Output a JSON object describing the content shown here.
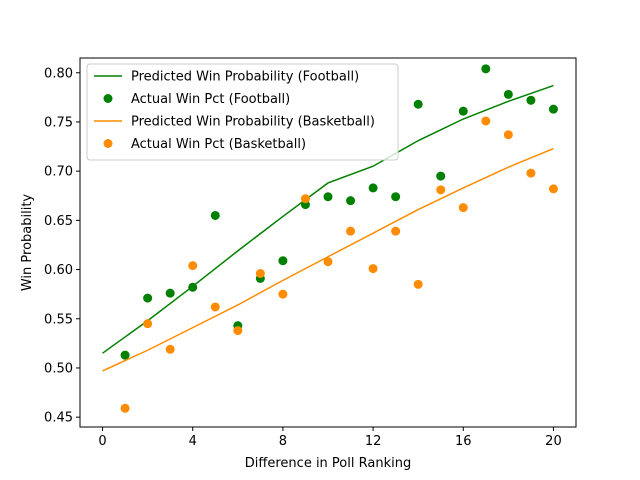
{
  "chart_data": {
    "type": "scatter",
    "title": "",
    "xlabel": "Difference in Poll Ranking",
    "ylabel": "Win Probability",
    "xlim": [
      -1,
      21
    ],
    "ylim": [
      0.44,
      0.815
    ],
    "xticks": [
      0,
      4,
      8,
      12,
      16,
      20
    ],
    "yticks": [
      0.45,
      0.5,
      0.55,
      0.6,
      0.65,
      0.7,
      0.75,
      0.8
    ],
    "ytick_labels": [
      "0.45",
      "0.50",
      "0.55",
      "0.60",
      "0.65",
      "0.70",
      "0.75",
      "0.80"
    ],
    "grid": false,
    "legend_position": "top-left",
    "colors": {
      "football": "#008000",
      "basketball": "#ff8c00"
    },
    "series": [
      {
        "name": "Predicted Win Probability (Football)",
        "kind": "line",
        "color": "#008000",
        "x": [
          0,
          2,
          4,
          6,
          8,
          10,
          12,
          14,
          16,
          18,
          20
        ],
        "y": [
          0.515,
          0.548,
          0.583,
          0.619,
          0.654,
          0.688,
          0.705,
          0.731,
          0.753,
          0.771,
          0.787
        ]
      },
      {
        "name": "Actual Win Pct (Football)",
        "kind": "scatter",
        "color": "#008000",
        "x": [
          1,
          2,
          3,
          4,
          5,
          6,
          7,
          8,
          9,
          10,
          11,
          12,
          13,
          14,
          15,
          16,
          17,
          18,
          19,
          20
        ],
        "y": [
          0.513,
          0.571,
          0.576,
          0.582,
          0.655,
          0.543,
          0.591,
          0.609,
          0.666,
          0.674,
          0.67,
          0.683,
          0.674,
          0.768,
          0.695,
          0.761,
          0.804,
          0.778,
          0.772,
          0.763
        ]
      },
      {
        "name": "Predicted Win Probability (Basketball)",
        "kind": "line",
        "color": "#ff8c00",
        "x": [
          0,
          2,
          4,
          6,
          8,
          10,
          12,
          14,
          16,
          18,
          20
        ],
        "y": [
          0.497,
          0.518,
          0.541,
          0.564,
          0.589,
          0.613,
          0.637,
          0.661,
          0.683,
          0.704,
          0.723
        ]
      },
      {
        "name": "Actual Win Pct (Basketball)",
        "kind": "scatter",
        "color": "#ff8c00",
        "x": [
          1,
          2,
          3,
          4,
          5,
          6,
          7,
          8,
          9,
          10,
          11,
          12,
          13,
          14,
          15,
          16,
          17,
          18,
          19,
          20
        ],
        "y": [
          0.459,
          0.545,
          0.519,
          0.604,
          0.562,
          0.538,
          0.596,
          0.575,
          0.672,
          0.608,
          0.639,
          0.601,
          0.639,
          0.585,
          0.681,
          0.663,
          0.751,
          0.737,
          0.698,
          0.682
        ]
      }
    ]
  }
}
